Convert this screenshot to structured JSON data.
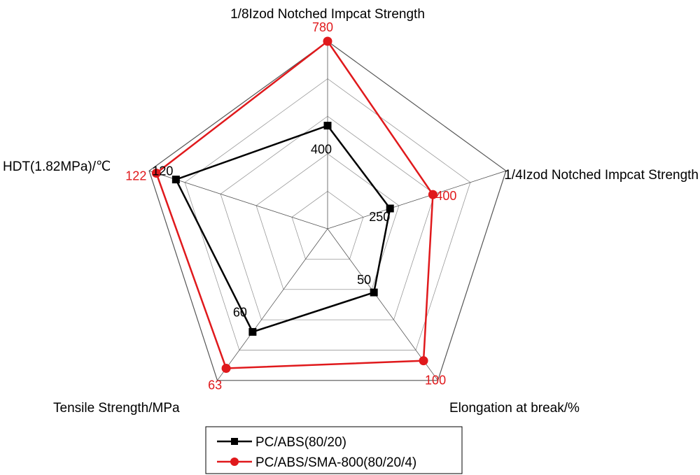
{
  "chart_data": {
    "type": "radar",
    "axes": [
      "1/8Izod Notched Impcat Strength",
      "1/4Izod Notched Impcat Strength",
      "Elongation at break/%",
      "Tensile Strength/MPa",
      "HDT(1.82MPa)/℃"
    ],
    "series": [
      {
        "name": "PC/ABS(80/20)",
        "color": "#000000",
        "marker": "square",
        "values": [
          400,
          250,
          50,
          60,
          120
        ],
        "fractions": [
          0.55,
          0.35,
          0.42,
          0.68,
          0.85
        ]
      },
      {
        "name": "PC/ABS/SMA-800(80/20/4)",
        "color": "#e0191c",
        "marker": "circle",
        "values": [
          780,
          400,
          100,
          63,
          122
        ],
        "fractions": [
          1.0,
          0.59,
          0.87,
          0.92,
          0.96
        ]
      }
    ],
    "value_labels": {
      "black": [
        "400",
        "250",
        "50",
        "60",
        "120"
      ],
      "red": [
        "780",
        "400",
        "100",
        "63",
        "122"
      ]
    },
    "grid_rings": 5,
    "legend_position": "bottom"
  }
}
